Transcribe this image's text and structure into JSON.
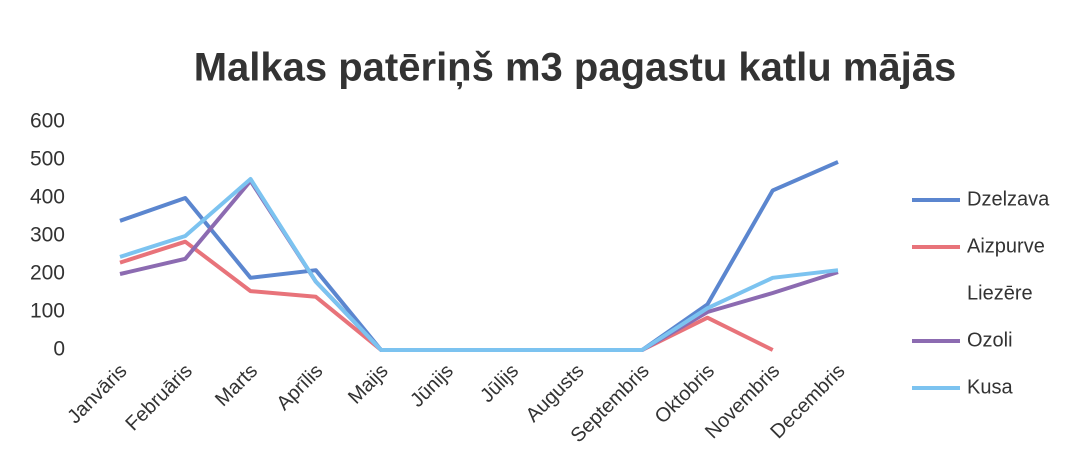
{
  "chart_data": {
    "type": "line",
    "title": "Malkas patēriņš m3 pagastu katlu mājās",
    "categories": [
      "Janvāris",
      "Februāris",
      "Marts",
      "Aprīlis",
      "Maijs",
      "Jūnijs",
      "Jūlijs",
      "Augusts",
      "Septembris",
      "Oktobris",
      "Novembris",
      "Decembris"
    ],
    "series": [
      {
        "name": "Dzelzava",
        "color": "#5b86cf",
        "values": [
          340,
          400,
          190,
          210,
          0,
          0,
          0,
          0,
          0,
          120,
          420,
          495
        ]
      },
      {
        "name": "Aizpurve",
        "color": "#e8737a",
        "values": [
          230,
          285,
          155,
          140,
          0,
          0,
          0,
          0,
          0,
          85,
          0,
          null
        ]
      },
      {
        "name": "Liezēre",
        "color": "#ffffff",
        "values": [
          null,
          null,
          null,
          null,
          null,
          null,
          null,
          null,
          null,
          null,
          null,
          null
        ]
      },
      {
        "name": "Ozoli",
        "color": "#8c6bb1",
        "values": [
          200,
          240,
          445,
          180,
          0,
          0,
          0,
          0,
          0,
          100,
          150,
          205
        ]
      },
      {
        "name": "Kusa",
        "color": "#7cc3f0",
        "values": [
          245,
          300,
          450,
          180,
          0,
          0,
          0,
          0,
          0,
          110,
          190,
          210
        ]
      }
    ],
    "ylim": [
      0,
      600
    ],
    "yticks": [
      0,
      100,
      200,
      300,
      400,
      500,
      600
    ],
    "grid": false,
    "legend": "right"
  }
}
